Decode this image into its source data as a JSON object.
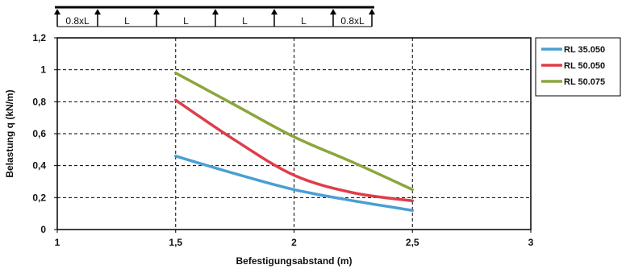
{
  "chart_data": {
    "type": "line",
    "xlabel": "Befestigungsabstand (m)",
    "ylabel": "Belastung q (kN/m)",
    "xlim": [
      1,
      3
    ],
    "ylim": [
      0,
      1.2
    ],
    "x_ticks": [
      "1",
      "1,5",
      "2",
      "2,5",
      "3"
    ],
    "y_ticks": [
      "0",
      "0,2",
      "0,4",
      "0,6",
      "0,8",
      "1",
      "1,2"
    ],
    "grid": "dashed",
    "legend_position": "right",
    "series": [
      {
        "name": "RL 35.050",
        "color": "#4a9fd4",
        "points": [
          [
            1.5,
            0.46
          ],
          [
            1.75,
            0.35
          ],
          [
            2.0,
            0.25
          ],
          [
            2.25,
            0.18
          ],
          [
            2.5,
            0.12
          ]
        ]
      },
      {
        "name": "RL 50.050",
        "color": "#e03c4b",
        "points": [
          [
            1.5,
            0.81
          ],
          [
            1.75,
            0.56
          ],
          [
            2.0,
            0.34
          ],
          [
            2.25,
            0.23
          ],
          [
            2.5,
            0.18
          ]
        ]
      },
      {
        "name": "RL 50.075",
        "color": "#8aa63d",
        "points": [
          [
            1.5,
            0.98
          ],
          [
            1.75,
            0.78
          ],
          [
            2.0,
            0.58
          ],
          [
            2.25,
            0.42
          ],
          [
            2.5,
            0.25
          ]
        ]
      }
    ]
  },
  "beam_diagram": {
    "spans": [
      "0.8xL",
      "L",
      "L",
      "L",
      "L",
      "0.8xL"
    ]
  }
}
